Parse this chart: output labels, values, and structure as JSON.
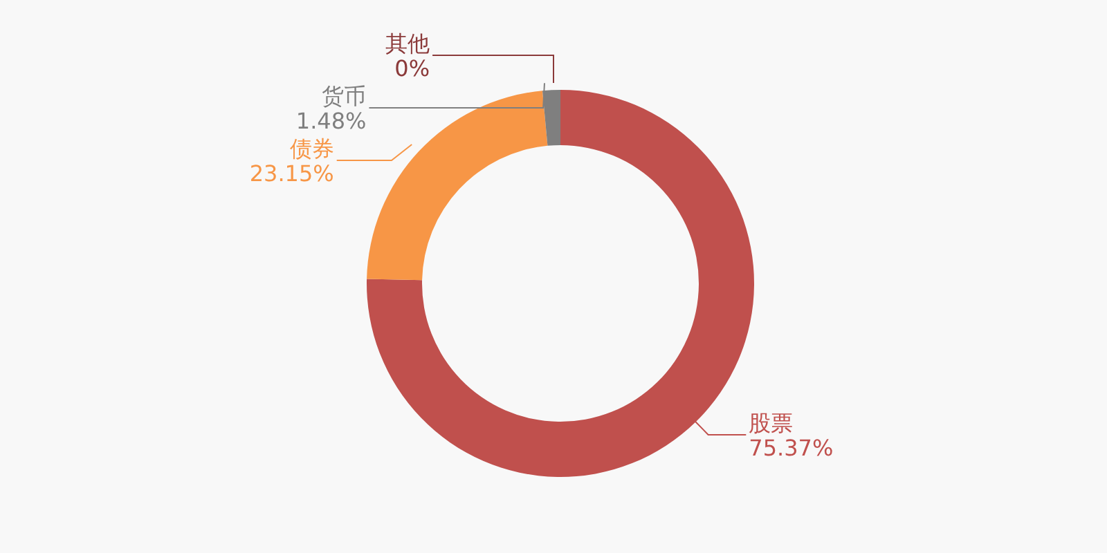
{
  "chart_data": {
    "type": "donut",
    "categories": [
      "股票",
      "债券",
      "货币",
      "其他"
    ],
    "values": [
      75.37,
      23.15,
      1.48,
      0
    ],
    "colors": [
      "#c0504d",
      "#f79646",
      "#7f7f7f",
      "#8b3a3a"
    ],
    "value_labels": [
      "75.37%",
      "23.15%",
      "1.48%",
      "0%"
    ],
    "legend": false
  }
}
